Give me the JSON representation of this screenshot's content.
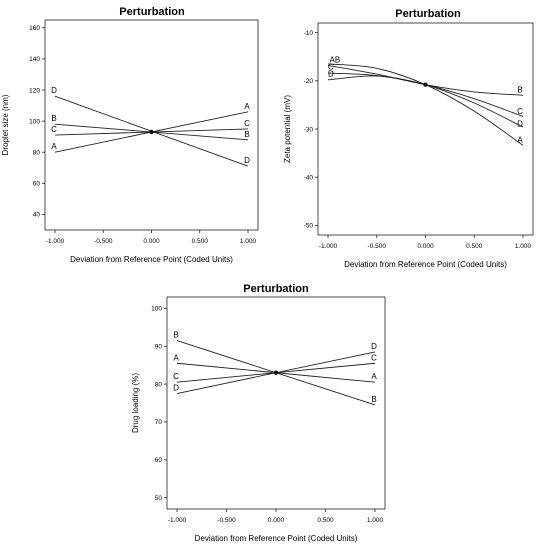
{
  "chart_data": [
    {
      "type": "line",
      "title": "Perturbation",
      "xlabel": "Deviation from Reference Point (Coded Units)",
      "ylabel": "Droplet size (nm)",
      "xlim": [
        -1,
        1
      ],
      "ylim": [
        30,
        165
      ],
      "xticks": [
        "-1.000",
        "-0.500",
        "0.000",
        "0.500",
        "1.000"
      ],
      "yticks": [
        "40",
        "60",
        "80",
        "100",
        "120",
        "140",
        "160"
      ],
      "xtick_values": [
        -1,
        -0.5,
        0,
        0.5,
        1
      ],
      "ytick_values": [
        40,
        60,
        80,
        100,
        120,
        140,
        160
      ],
      "center": {
        "x": 0,
        "y": 93
      },
      "grid": false,
      "series": [
        {
          "name": "A",
          "x": [
            -1,
            0,
            1
          ],
          "y": [
            80,
            93,
            106
          ]
        },
        {
          "name": "B",
          "x": [
            -1,
            0,
            1
          ],
          "y": [
            98,
            93,
            88
          ]
        },
        {
          "name": "C",
          "x": [
            -1,
            0,
            1
          ],
          "y": [
            91,
            93,
            95
          ]
        },
        {
          "name": "D",
          "x": [
            -1,
            0,
            1
          ],
          "y": [
            116,
            93,
            71
          ]
        }
      ]
    },
    {
      "type": "line",
      "title": "Perturbation",
      "xlabel": "Deviation from Reference Point (Coded Units)",
      "ylabel": "Zeta potential (mV)",
      "xlim": [
        -1,
        1
      ],
      "ylim": [
        -52,
        -8
      ],
      "xticks": [
        "-1.000",
        "-0.500",
        "0.000",
        "0.500",
        "1.000"
      ],
      "yticks": [
        "-10",
        "-20",
        "-30",
        "-40",
        "-50"
      ],
      "xtick_values": [
        -1,
        -0.5,
        0,
        0.5,
        1
      ],
      "ytick_values": [
        -10,
        -20,
        -30,
        -40,
        -50
      ],
      "center": {
        "x": 0,
        "y": -20.8
      },
      "grid": false,
      "series": [
        {
          "name": "A",
          "x": [
            -1,
            -0.5,
            0,
            0.5,
            1
          ],
          "y": [
            -16.5,
            -17.4,
            -20.8,
            -26.3,
            -33.4
          ]
        },
        {
          "name": "B",
          "x": [
            -1,
            -0.5,
            0,
            0.5,
            1
          ],
          "y": [
            -16.8,
            -18.6,
            -20.8,
            -22.3,
            -23.0
          ]
        },
        {
          "name": "C",
          "x": [
            -1,
            -0.5,
            0,
            0.5,
            1
          ],
          "y": [
            -18.4,
            -18.9,
            -20.8,
            -23.7,
            -27.4
          ]
        },
        {
          "name": "D",
          "x": [
            -1,
            -0.5,
            0,
            0.5,
            1
          ],
          "y": [
            -19.8,
            -19.0,
            -20.8,
            -24.6,
            -29.6
          ]
        }
      ],
      "point_labels": [
        {
          "text": "AB",
          "x": -0.93,
          "y": -16.4
        },
        {
          "text": "C",
          "x": -0.97,
          "y": -17.9
        },
        {
          "text": "D",
          "x": -0.97,
          "y": -19.3
        },
        {
          "text": "B",
          "x": 0.97,
          "y": -22.6
        },
        {
          "text": "C",
          "x": 0.97,
          "y": -27.1
        },
        {
          "text": "D",
          "x": 0.97,
          "y": -29.7
        },
        {
          "text": "A",
          "x": 0.97,
          "y": -33.0
        }
      ]
    },
    {
      "type": "line",
      "title": "Perturbation",
      "xlabel": "Deviation from Reference Point (Coded Units)",
      "ylabel": "Drug loading (%)",
      "xlim": [
        -1,
        1
      ],
      "ylim": [
        47,
        103
      ],
      "xticks": [
        "-1.000",
        "-0.500",
        "0.000",
        "0.500",
        "1.000"
      ],
      "yticks": [
        "50",
        "60",
        "70",
        "80",
        "90",
        "100"
      ],
      "xtick_values": [
        -1,
        -0.5,
        0,
        0.5,
        1
      ],
      "ytick_values": [
        50,
        60,
        70,
        80,
        90,
        100
      ],
      "center": {
        "x": 0,
        "y": 83
      },
      "grid": false,
      "series": [
        {
          "name": "A",
          "x": [
            -1,
            0,
            1
          ],
          "y": [
            85.5,
            83,
            80.5
          ]
        },
        {
          "name": "B",
          "x": [
            -1,
            0,
            1
          ],
          "y": [
            91.5,
            83,
            74.5
          ]
        },
        {
          "name": "C",
          "x": [
            -1,
            0,
            1
          ],
          "y": [
            80.5,
            83,
            85.5
          ]
        },
        {
          "name": "D",
          "x": [
            -1,
            0,
            1
          ],
          "y": [
            77.5,
            83,
            88.5
          ]
        }
      ]
    }
  ]
}
